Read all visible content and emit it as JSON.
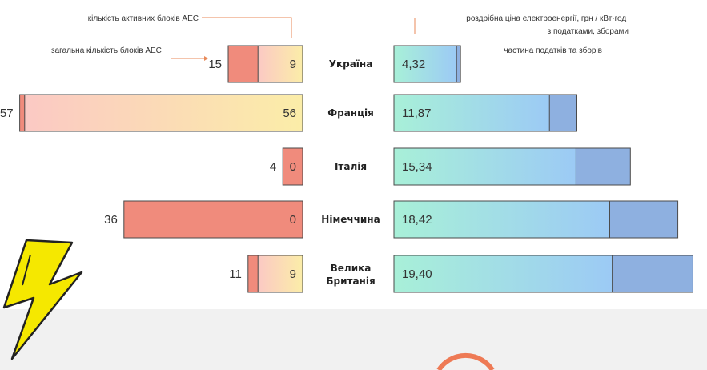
{
  "chart_data": {
    "type": "bar",
    "categories": [
      "Україна",
      "Франція",
      "Італія",
      "Німеччина",
      "Велика Британія"
    ],
    "units_total_label": "загальна кількість блоків АЕС",
    "units_active_label": "кількість активних блоків АЕС",
    "price_label": "роздрібна ціна електроенергії, грн / кВт·год з податками, зборами",
    "tax_label": "частина податків та зборів",
    "units_total": [
      15,
      57,
      4,
      36,
      11
    ],
    "units_active": [
      9,
      56,
      0,
      0,
      9
    ],
    "units_total_labels": [
      "15",
      "57",
      "4",
      "36",
      "11"
    ],
    "units_active_labels": [
      "9",
      "56",
      "0",
      "0",
      "9"
    ],
    "price": [
      4.32,
      11.87,
      15.34,
      18.42,
      19.4
    ],
    "price_labels": [
      "4,32",
      "11,87",
      "15,34",
      "18,42",
      "19,40"
    ],
    "tax_share": [
      0.06,
      0.15,
      0.23,
      0.24,
      0.27
    ],
    "colors": {
      "units_total": "#f08b7c",
      "units_active_start": "#fbc9c4",
      "units_active_end": "#fbeda8",
      "price_start": "#a8f0d8",
      "price_end": "#9ccaf5",
      "tax": "#8eb0e0",
      "outline": "#4a4a4a",
      "lightning": "#f5e800"
    }
  }
}
